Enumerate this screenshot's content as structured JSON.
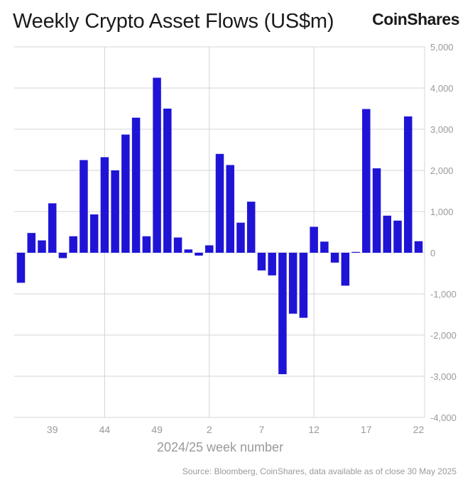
{
  "title": "Weekly Crypto Asset Flows (US$m)",
  "brand": "CoinShares",
  "source": "Source: Bloomberg, CoinShares, data available as of close 30 May 2025",
  "colors": {
    "bar": "#1f14d6",
    "grid": "#d4d4d4",
    "tick_text": "#9a9a9a"
  },
  "chart_data": {
    "type": "bar",
    "title": "Weekly Crypto Asset Flows (US$m)",
    "xlabel": "2024/25 week number",
    "ylabel": "",
    "ylim": [
      -4000,
      5000
    ],
    "yticks": [
      5000,
      4000,
      3000,
      2000,
      1000,
      0,
      -1000,
      -2000,
      -3000,
      -4000
    ],
    "ytick_labels": [
      "5,000",
      "4,000",
      "3,000",
      "2,000",
      "1,000",
      "0",
      "-1,000",
      "-2,000",
      "-3,000",
      "-4,000"
    ],
    "xtick_labels": [
      "39",
      "44",
      "49",
      "2",
      "7",
      "12",
      "17",
      "22"
    ],
    "vertical_gridlines_at": [
      "44",
      "2",
      "12"
    ],
    "grid": true,
    "legend": "none",
    "categories": [
      "36",
      "37",
      "38",
      "39",
      "40",
      "41",
      "42",
      "43",
      "44",
      "45",
      "46",
      "47",
      "48",
      "49",
      "50",
      "51",
      "52",
      "1",
      "2",
      "3",
      "4",
      "5",
      "6",
      "7",
      "8",
      "9",
      "10",
      "11",
      "12",
      "13",
      "14",
      "15",
      "16",
      "17",
      "18",
      "19",
      "20",
      "21",
      "22"
    ],
    "values": [
      -730,
      480,
      300,
      1200,
      -130,
      400,
      2250,
      930,
      2320,
      2000,
      2870,
      3280,
      400,
      4250,
      3500,
      370,
      80,
      -70,
      180,
      2400,
      2130,
      730,
      1240,
      -430,
      -550,
      -2950,
      -1480,
      -1580,
      630,
      270,
      -240,
      -800,
      20,
      3490,
      2050,
      900,
      780,
      3310,
      280
    ]
  }
}
